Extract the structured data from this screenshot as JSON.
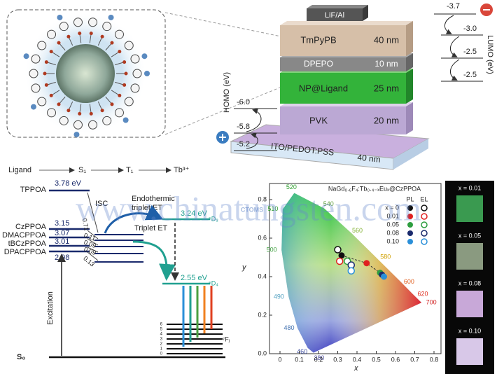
{
  "device": {
    "layers": [
      {
        "name": "LiF/Al"
      },
      {
        "name": "TmPyPB",
        "thickness": "40 nm"
      },
      {
        "name": "DPEPO",
        "thickness": "10 nm"
      },
      {
        "name": "NP@Ligand",
        "thickness": "25 nm"
      },
      {
        "name": "PVK",
        "thickness": "20 nm"
      },
      {
        "name": "ITO/PEDOT:PSS",
        "thickness": "40 nm"
      }
    ],
    "homo": {
      "label": "HOMO (eV)",
      "levels": [
        "-6.0",
        "-5.8",
        "-5.2"
      ]
    },
    "lumo": {
      "label": "LUMO (eV)",
      "levels": [
        "-3.7",
        "-3.0",
        "-2.5",
        "-2.5"
      ]
    }
  },
  "energy_diagram": {
    "header": [
      "Ligand",
      "S₁",
      "T₁",
      "Tb³⁺"
    ],
    "ligands": [
      {
        "name": "TPPOA",
        "energy": "3.78 eV"
      },
      {
        "name": "CzPPOA",
        "energy": "3.15"
      },
      {
        "name": "DMACPPOA",
        "energy": "3.07"
      },
      {
        "name": "tBCzPPOA",
        "energy": "3.01"
      },
      {
        "name": "DPACPPOA",
        "energy": "2.98"
      }
    ],
    "isc": "ISC",
    "rates": [
      "0.71",
      "0.11",
      "0.09",
      "0.09",
      "0.13"
    ],
    "endothermic": "Endothermic",
    "endothermic_2": "triplet ET",
    "triplet_et": "Triplet ET",
    "d3_energy": "3.24 eV",
    "d3_label": "⁵D₃",
    "d4_energy": "2.55 eV",
    "d4_label": "⁵D₄",
    "f_label": "⁷Fⱼ",
    "f_levels": [
      "0",
      "1",
      "2",
      "3",
      "4",
      "5",
      "6"
    ],
    "excitation": "Excitation",
    "ground": "S₀"
  },
  "cie": {
    "title": "NaGd₀.₆F₄:Tb₀.₄₋ₓEuₓ@CzPPOA",
    "x_label": "x",
    "y_label": "y",
    "xticks": [
      "0",
      "0.1",
      "0.2",
      "0.3",
      "0.4",
      "0.5",
      "0.6",
      "0.7",
      "0.8"
    ],
    "yticks": [
      "0.0",
      "0.2",
      "0.4",
      "0.6",
      "0.8"
    ],
    "wavelengths": [
      "380",
      "460",
      "480",
      "490",
      "500",
      "510",
      "520",
      "540",
      "560",
      "580",
      "600",
      "620",
      "700"
    ],
    "legend_headers": [
      "PL",
      "EL"
    ],
    "series": [
      {
        "name": "x = 0",
        "color": "#111111",
        "pl": [
          0.32,
          0.51
        ],
        "el": [
          0.3,
          0.54
        ]
      },
      {
        "name": "0.01",
        "color": "#e02020",
        "pl": [
          0.45,
          0.47
        ],
        "el": [
          0.31,
          0.48
        ]
      },
      {
        "name": "0.05",
        "color": "#2e9e40",
        "pl": [
          0.52,
          0.42
        ],
        "el": [
          0.35,
          0.48
        ]
      },
      {
        "name": "0.08",
        "color": "#1a2a6c",
        "pl": [
          0.53,
          0.41
        ],
        "el": [
          0.37,
          0.46
        ]
      },
      {
        "name": "0.10",
        "color": "#2a8fd8",
        "pl": [
          0.54,
          0.4
        ],
        "el": [
          0.37,
          0.43
        ]
      }
    ]
  },
  "photos": [
    "x = 0.01",
    "x = 0.05",
    "x = 0.08",
    "x = 0.10"
  ],
  "watermark": "www.chinatungsten.com",
  "logo": "CTOMS"
}
